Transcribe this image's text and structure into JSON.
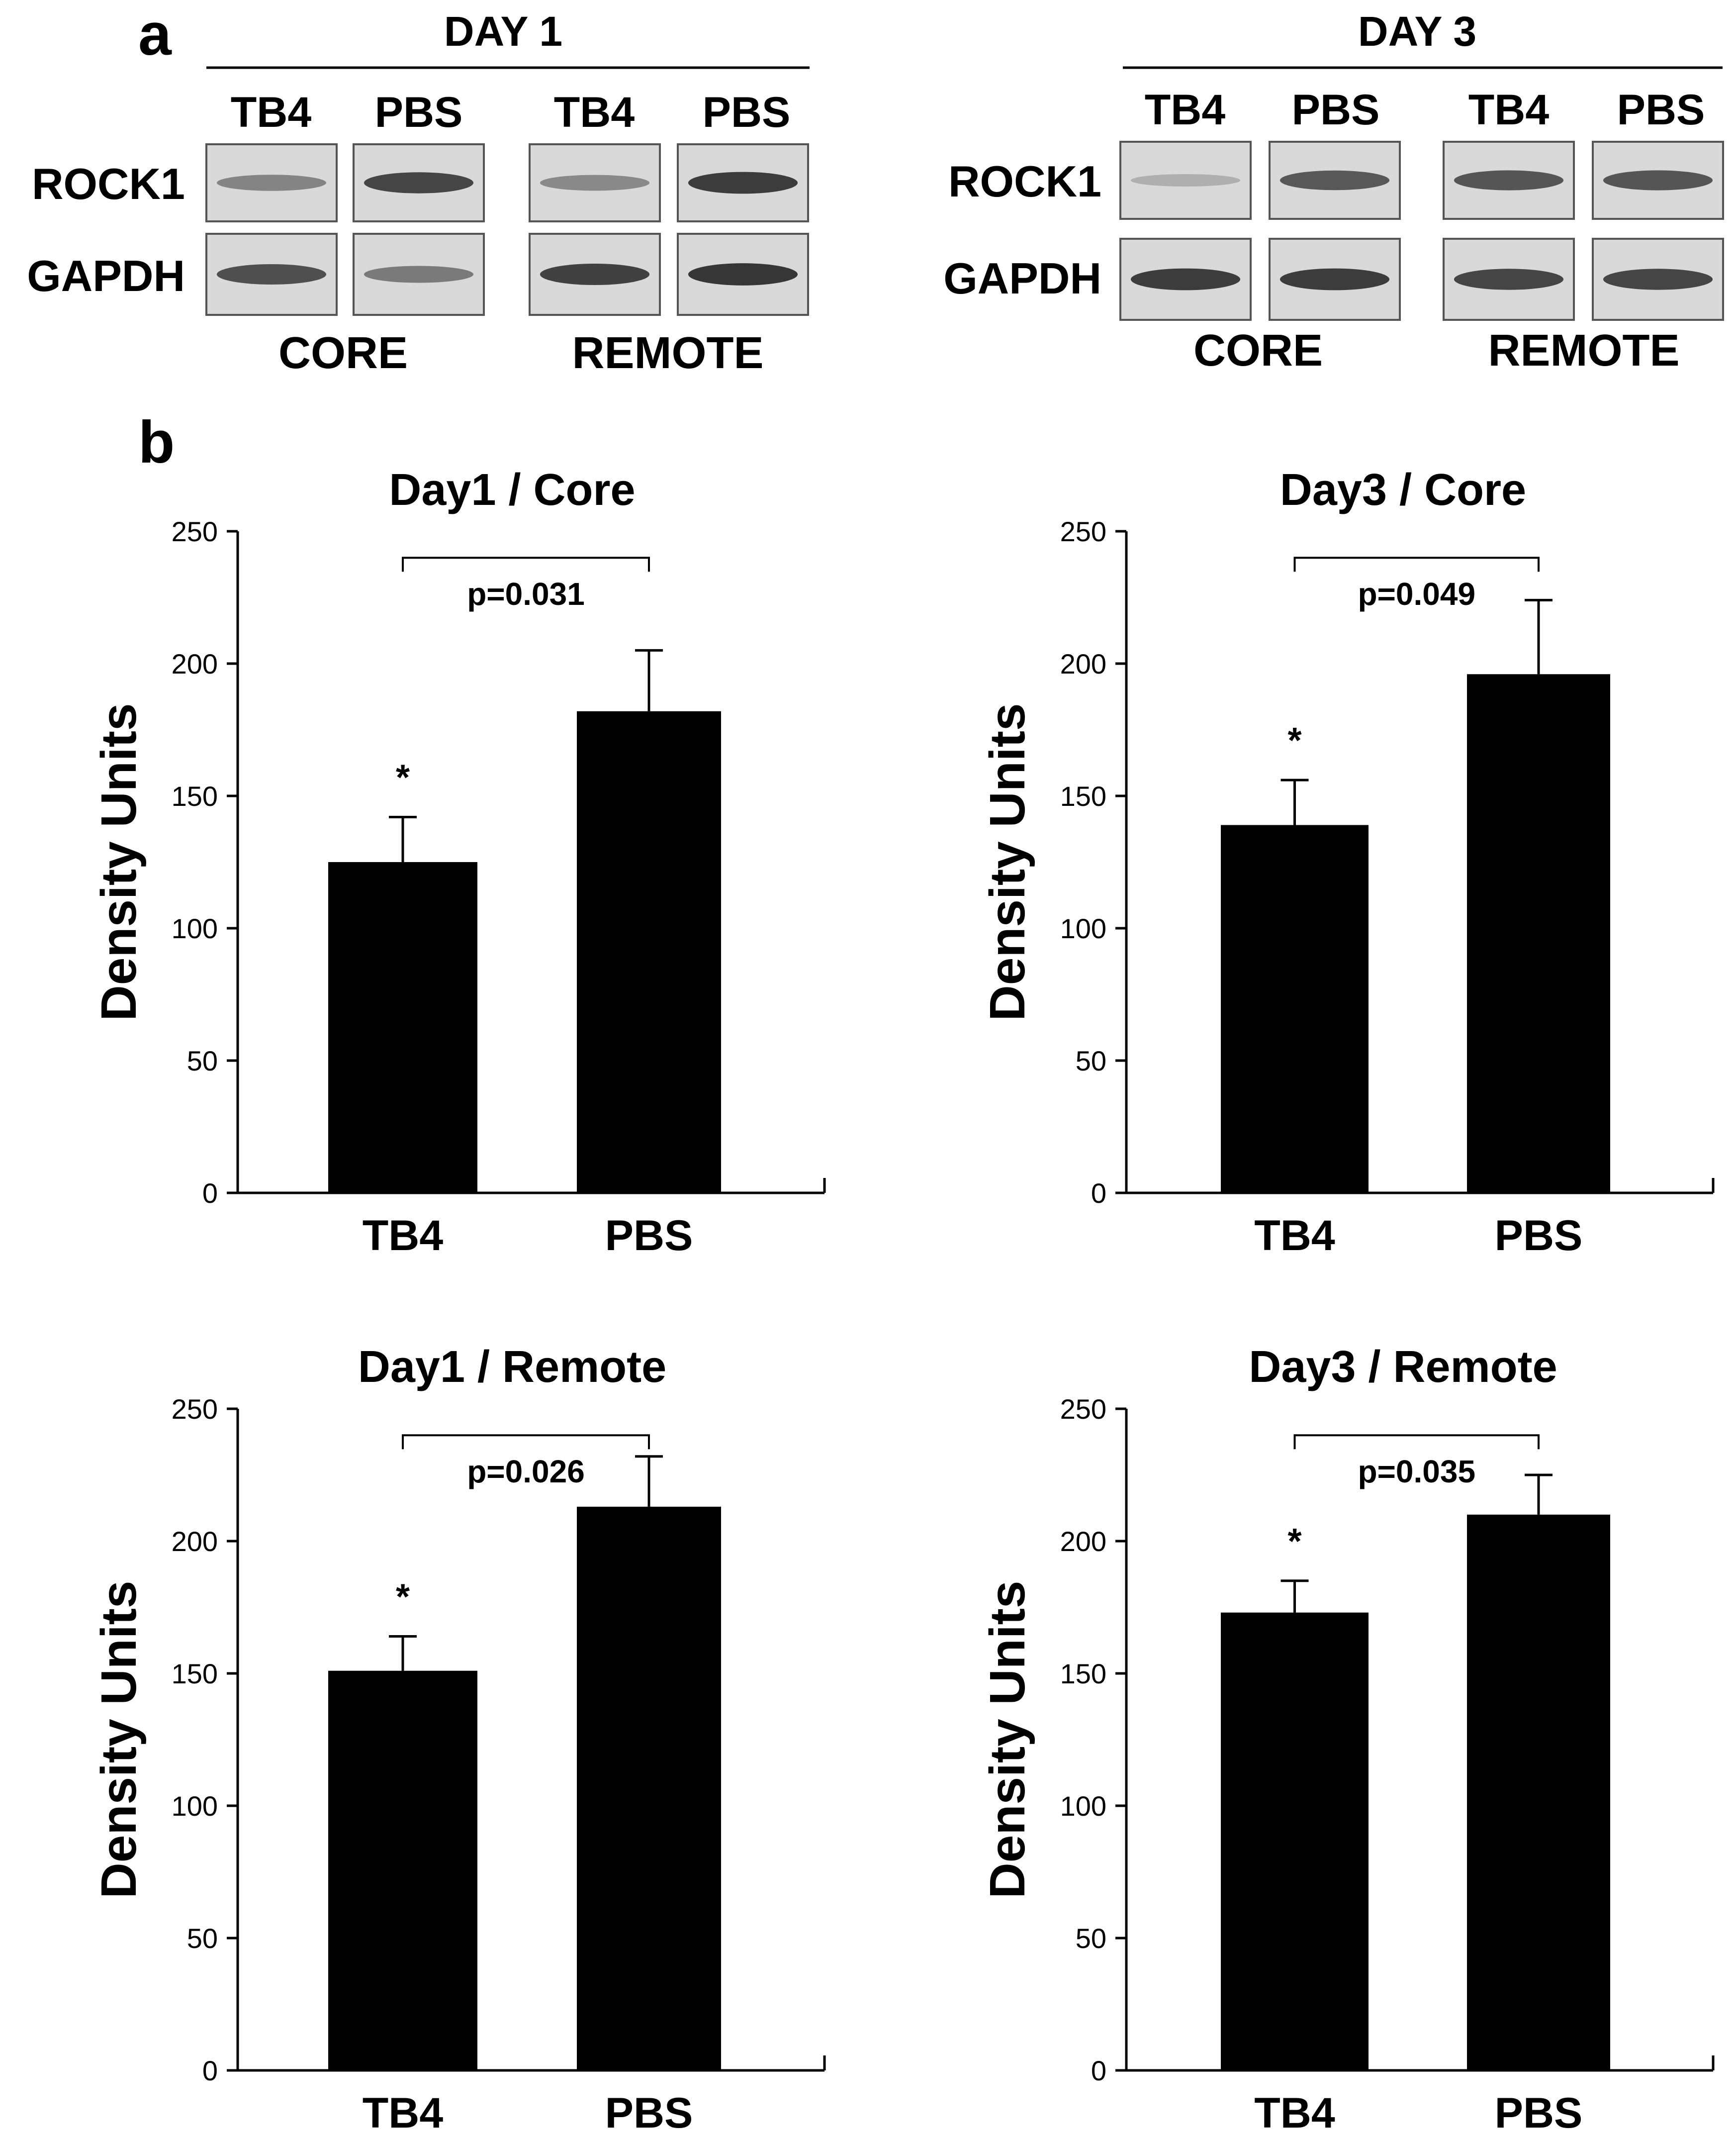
{
  "panel_a": {
    "letter": "a",
    "blots": [
      {
        "day_label": "DAY 1",
        "lanes": [
          "TB4",
          "PBS",
          "TB4",
          "PBS"
        ],
        "rows": [
          "ROCK1",
          "GAPDH"
        ],
        "regions": [
          "CORE",
          "REMOTE"
        ],
        "intensity": {
          "ROCK1": [
            0.45,
            0.8,
            0.42,
            0.85
          ],
          "GAPDH": [
            0.75,
            0.5,
            0.82,
            0.88
          ]
        }
      },
      {
        "day_label": "DAY 3",
        "lanes": [
          "TB4",
          "PBS",
          "TB4",
          "PBS"
        ],
        "rows": [
          "ROCK1",
          "GAPDH"
        ],
        "regions": [
          "CORE",
          "REMOTE"
        ],
        "intensity": {
          "ROCK1": [
            0.18,
            0.7,
            0.72,
            0.72
          ],
          "GAPDH": [
            0.85,
            0.85,
            0.8,
            0.8
          ]
        }
      }
    ]
  },
  "panel_b": {
    "letter": "b"
  },
  "chart_data": [
    {
      "type": "bar",
      "title": "Day1 / Core",
      "ylabel": "Density Units",
      "xlabel": "",
      "categories": [
        "TB4",
        "PBS"
      ],
      "values": [
        125,
        182
      ],
      "errors": [
        17,
        23
      ],
      "ylim": [
        0,
        250
      ],
      "yticks": [
        0,
        50,
        100,
        150,
        200,
        250
      ],
      "pvalue": "p=0.031",
      "significance": "*"
    },
    {
      "type": "bar",
      "title": "Day3 / Core",
      "ylabel": "Density Units",
      "xlabel": "",
      "categories": [
        "TB4",
        "PBS"
      ],
      "values": [
        139,
        196
      ],
      "errors": [
        17,
        28
      ],
      "ylim": [
        0,
        250
      ],
      "yticks": [
        0,
        50,
        100,
        150,
        200,
        250
      ],
      "pvalue": "p=0.049",
      "significance": "*"
    },
    {
      "type": "bar",
      "title": "Day1 / Remote",
      "ylabel": "Density Units",
      "xlabel": "",
      "categories": [
        "TB4",
        "PBS"
      ],
      "values": [
        151,
        213
      ],
      "errors": [
        13,
        19
      ],
      "ylim": [
        0,
        250
      ],
      "yticks": [
        0,
        50,
        100,
        150,
        200,
        250
      ],
      "pvalue": "p=0.026",
      "significance": "*"
    },
    {
      "type": "bar",
      "title": "Day3 / Remote",
      "ylabel": "Density Units",
      "xlabel": "",
      "categories": [
        "TB4",
        "PBS"
      ],
      "values": [
        173,
        210
      ],
      "errors": [
        12,
        15
      ],
      "ylim": [
        0,
        250
      ],
      "yticks": [
        0,
        50,
        100,
        150,
        200,
        250
      ],
      "pvalue": "p=0.035",
      "significance": "*"
    }
  ]
}
